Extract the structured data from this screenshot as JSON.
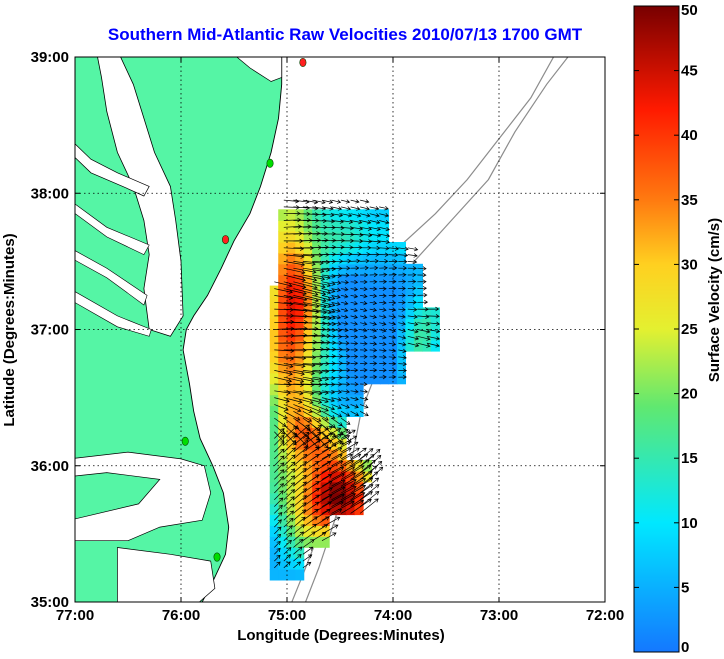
{
  "title": "Southern Mid-Atlantic Raw Velocities 2010/07/13 1700 GMT",
  "colors": {
    "title": "#0000ff",
    "land": "#55f5a5",
    "coast": "#000000",
    "bathymetry": "#8c8c8c",
    "arrow": "#000000",
    "station_active": "#00dd00",
    "station_inactive": "#ff2020"
  },
  "map": {
    "xlabel": "Longitude (Degrees:Minutes)",
    "ylabel": "Latitude (Degrees:Minutes)",
    "lon_range": [
      -77,
      -72
    ],
    "lat_range": [
      35,
      39
    ],
    "lon_ticks": [
      {
        "value": -77,
        "label": "77:00"
      },
      {
        "value": -76,
        "label": "76:00"
      },
      {
        "value": -75,
        "label": "75:00"
      },
      {
        "value": -74,
        "label": "74:00"
      },
      {
        "value": -73,
        "label": "73:00"
      },
      {
        "value": -72,
        "label": "72:00"
      }
    ],
    "lat_ticks": [
      {
        "value": 35,
        "label": "35:00"
      },
      {
        "value": 36,
        "label": "36:00"
      },
      {
        "value": 37,
        "label": "37:00"
      },
      {
        "value": 38,
        "label": "38:00"
      },
      {
        "value": 39,
        "label": "39:00"
      }
    ],
    "grid": true
  },
  "colorbar": {
    "label": "Surface Velocity (cm/s)",
    "range": [
      0,
      50
    ],
    "ticks": [
      {
        "value": 0,
        "label": "0"
      },
      {
        "value": 5,
        "label": "5"
      },
      {
        "value": 10,
        "label": "10"
      },
      {
        "value": 15,
        "label": "15"
      },
      {
        "value": 20,
        "label": "20"
      },
      {
        "value": 25,
        "label": "25"
      },
      {
        "value": 30,
        "label": "30"
      },
      {
        "value": 35,
        "label": "35"
      },
      {
        "value": 40,
        "label": "40"
      },
      {
        "value": 45,
        "label": "45"
      },
      {
        "value": 50,
        "label": "50"
      }
    ]
  },
  "chart_data": {
    "type": "heatmap",
    "title": "Southern Mid-Atlantic Raw Velocities 2010/07/13 1700 GMT",
    "xlabel": "Longitude (Degrees:Minutes)",
    "ylabel": "Latitude (Degrees:Minutes)",
    "xlim": [
      -77,
      -72
    ],
    "ylim": [
      35,
      39
    ],
    "value_label": "Surface Velocity (cm/s)",
    "value_range": [
      0,
      50
    ],
    "grid_step": 0.08,
    "field_lon_range": [
      -75.12,
      -73.55
    ],
    "field_lat_range": [
      35.2,
      37.9
    ],
    "stations": [
      {
        "lon": -74.85,
        "lat": 38.96,
        "status": "inactive"
      },
      {
        "lon": -75.16,
        "lat": 38.22,
        "status": "active"
      },
      {
        "lon": -75.58,
        "lat": 37.66,
        "status": "inactive"
      },
      {
        "lon": -75.96,
        "lat": 36.18,
        "status": "active"
      },
      {
        "lon": -75.66,
        "lat": 35.33,
        "status": "active"
      }
    ]
  }
}
